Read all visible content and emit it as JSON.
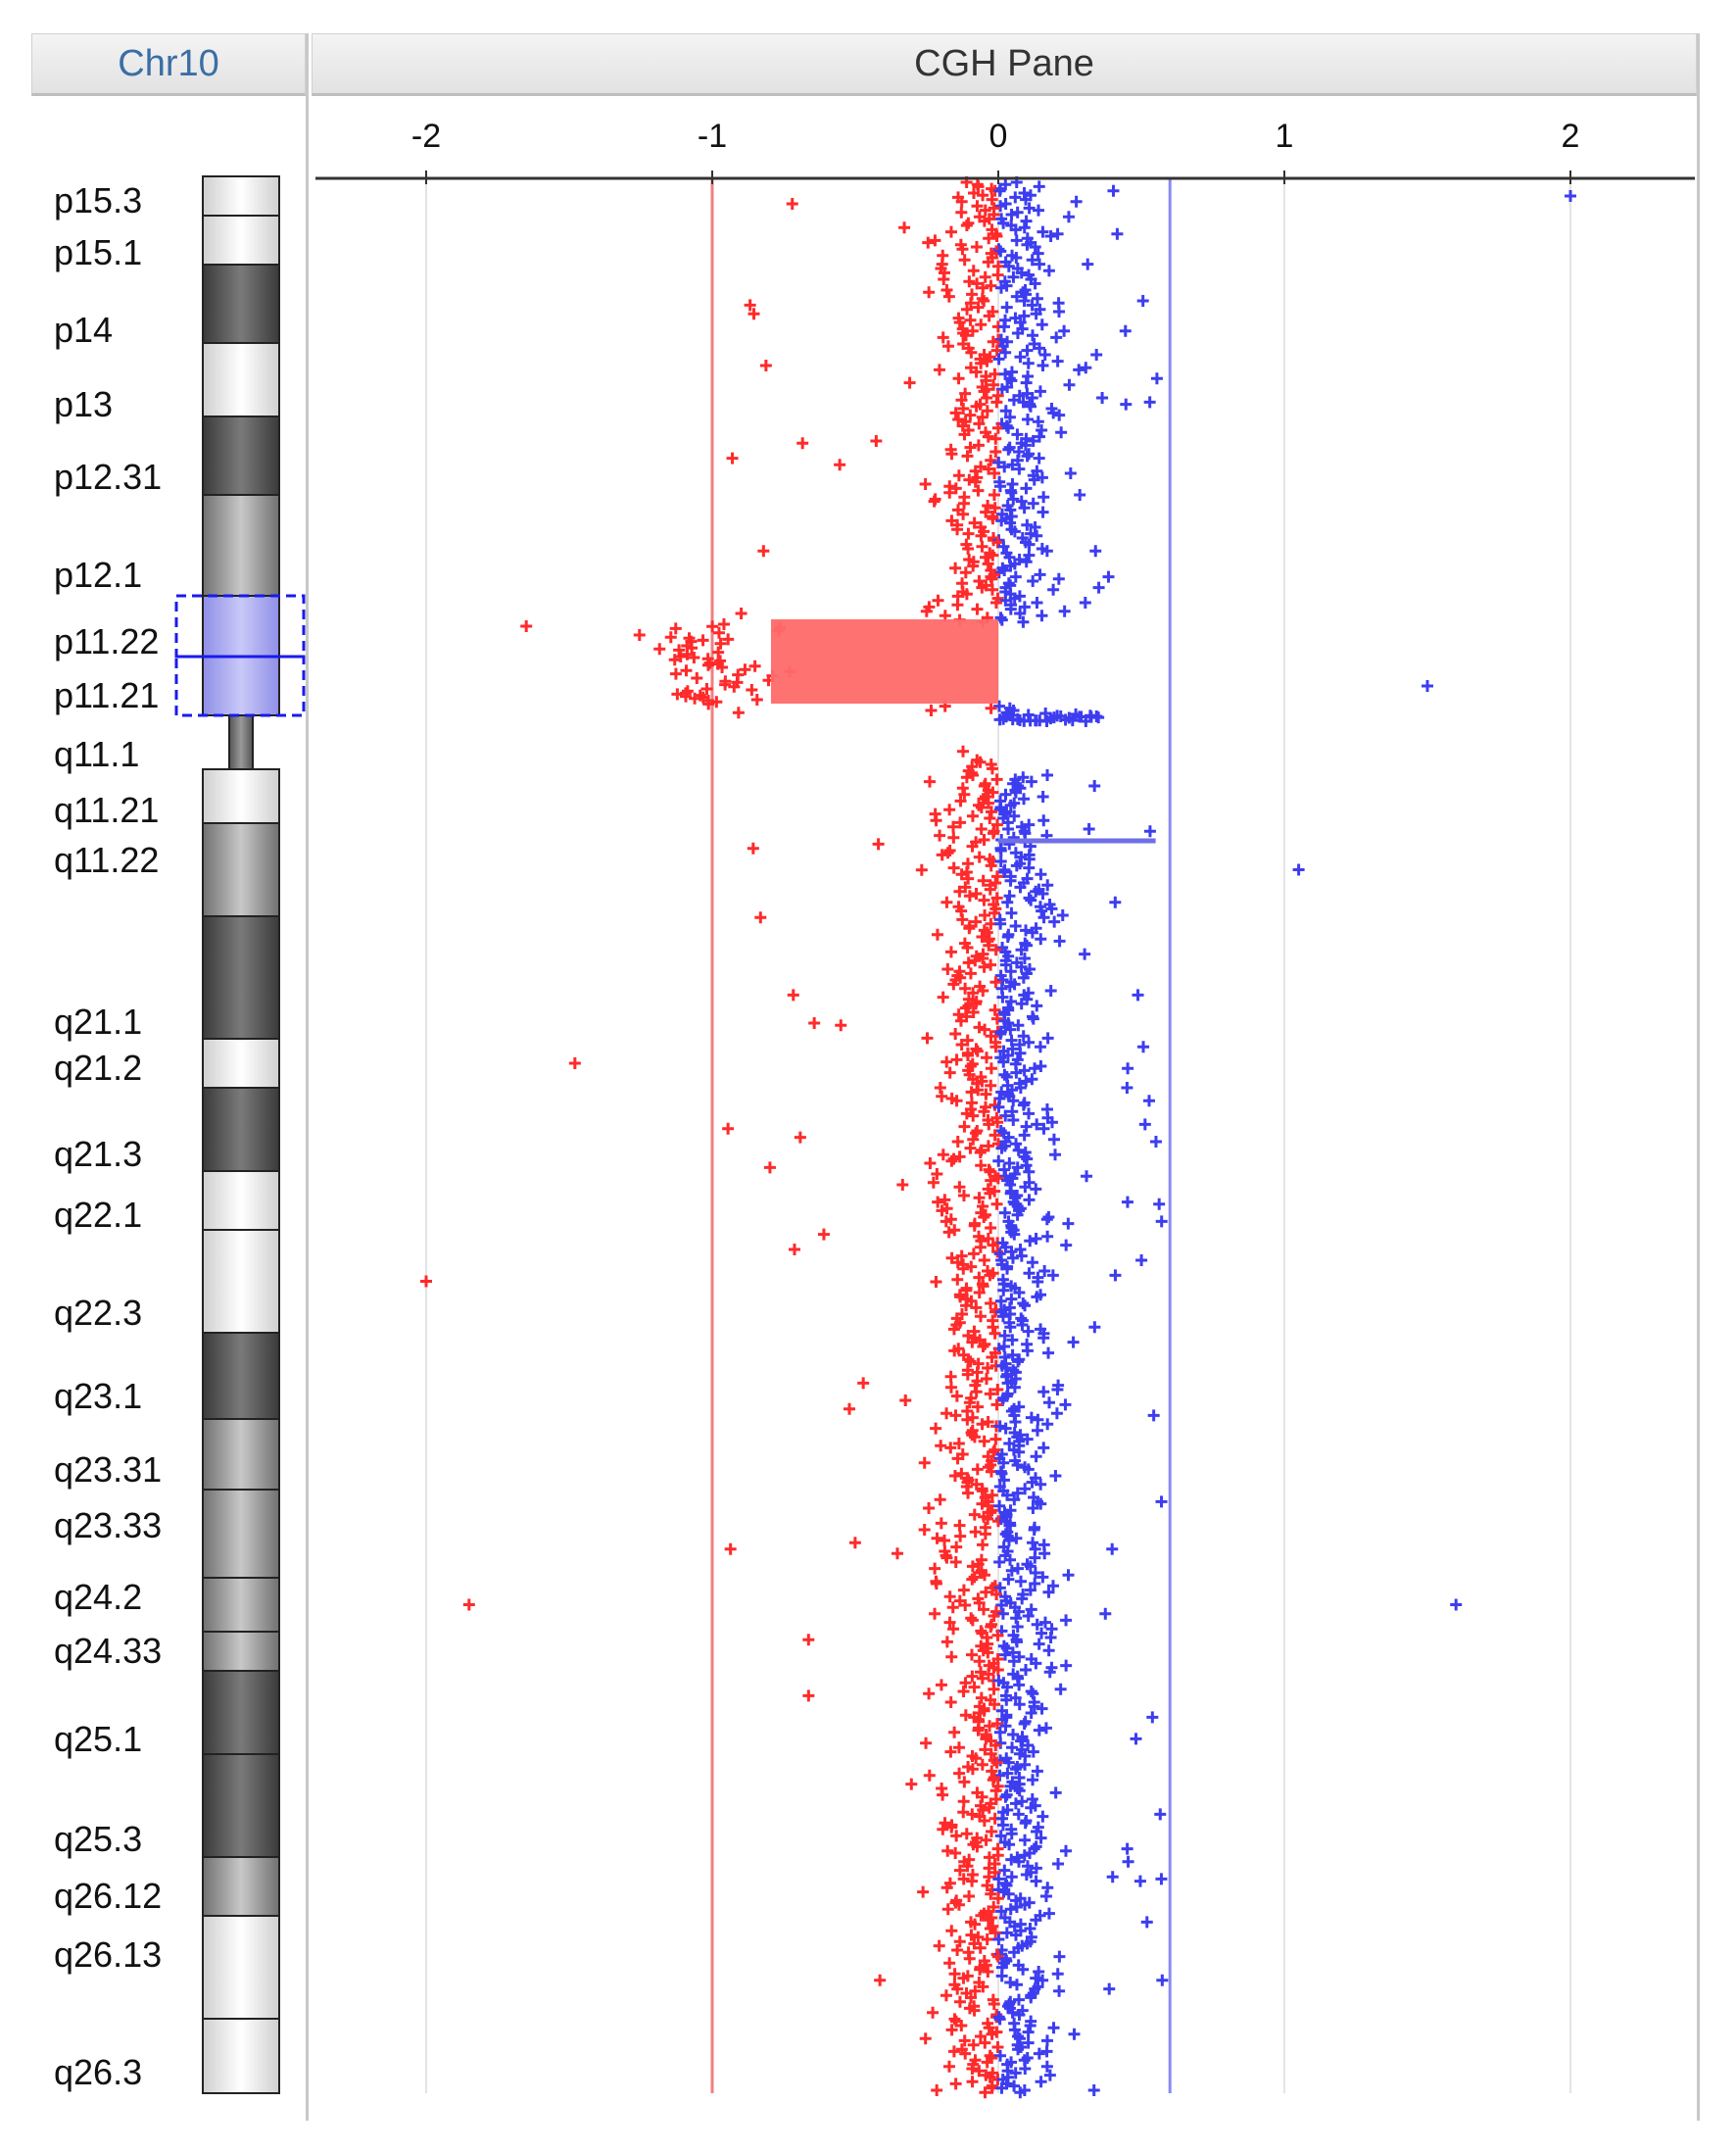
{
  "chr_header": "Chr10",
  "cgh_header": "CGH Pane",
  "colors": {
    "loss": "#ff2a2a",
    "gain": "#3d3df0",
    "loss_line": "#f08080",
    "gain_line": "#8a8af0"
  },
  "chart_data": {
    "type": "scatter",
    "orientation": "vertical-genome",
    "xlim": [
      -2.45,
      2.45
    ],
    "xticks": [
      "-2",
      "-1",
      "0",
      "1",
      "2"
    ],
    "xtick_values": [
      -2,
      -1,
      0,
      1,
      2
    ],
    "threshold_lines": [
      -1,
      0.6
    ],
    "grid": true,
    "bands": [
      "p15.3",
      "p15.1",
      "p14",
      "p13",
      "p12.31",
      "p12.1",
      "p11.22",
      "p11.21",
      "q11.1",
      "q11.21",
      "q11.22",
      "q21.1",
      "q21.2",
      "q21.3",
      "q22.1",
      "q22.3",
      "q23.1",
      "q23.31",
      "q23.33",
      "q24.2",
      "q24.33",
      "q25.1",
      "q25.3",
      "q26.12",
      "q26.13",
      "q26.3"
    ],
    "highlighted_bands": [
      "p11.22",
      "p11.21"
    ],
    "segments": [
      {
        "name": "loss segment",
        "from_band": "p11.22",
        "to_band": "p11.21",
        "value": -1.0
      },
      {
        "name": "gain segment",
        "from_band": "q11.22",
        "to_band": "q11.22",
        "value": 0.55
      }
    ],
    "outliers": [
      {
        "band": "p15.3",
        "value": 2.0
      },
      {
        "band": "p11.21",
        "value": 1.5
      },
      {
        "band": "q11.22",
        "value": 1.05
      },
      {
        "band": "q24.2",
        "value": 1.6
      },
      {
        "band": "q22.3",
        "value": -2.0
      },
      {
        "band": "q24.2",
        "value": -1.85
      },
      {
        "band": "p11.22",
        "value": -1.65
      },
      {
        "band": "q21.2",
        "value": -1.48
      }
    ]
  }
}
